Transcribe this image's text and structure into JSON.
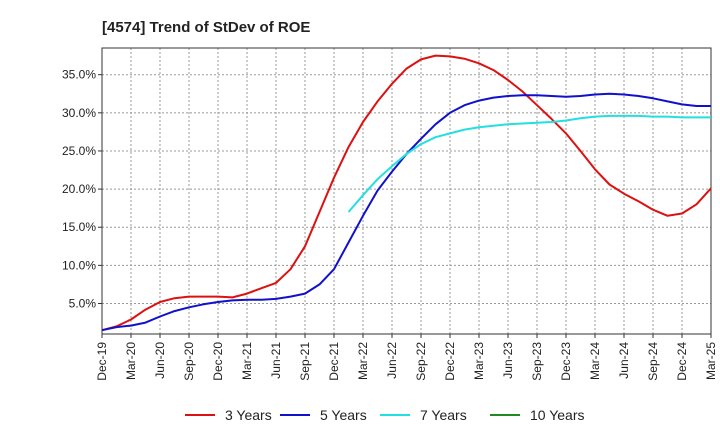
{
  "chart_data": {
    "type": "line",
    "title": "[4574]  Trend of StDev of ROE",
    "xlabel": "",
    "ylabel": "",
    "x_ticks": [
      "Dec-19",
      "Mar-20",
      "Jun-20",
      "Sep-20",
      "Dec-20",
      "Mar-21",
      "Jun-21",
      "Sep-21",
      "Dec-21",
      "Mar-22",
      "Jun-22",
      "Sep-22",
      "Dec-22",
      "Mar-23",
      "Jun-23",
      "Sep-23",
      "Dec-23",
      "Mar-24",
      "Jun-24",
      "Sep-24",
      "Dec-24",
      "Mar-25"
    ],
    "y_ticks": [
      "5.0%",
      "10.0%",
      "15.0%",
      "20.0%",
      "25.0%",
      "30.0%",
      "35.0%"
    ],
    "ylim": [
      1.0,
      38.5
    ],
    "grid": true,
    "legend_position": "bottom",
    "series": [
      {
        "name": "3 Years",
        "color": "#dd1111",
        "points": [
          [
            0,
            1.5
          ],
          [
            1,
            2.0
          ],
          [
            2,
            2.9
          ],
          [
            3,
            4.2
          ],
          [
            4,
            5.2
          ],
          [
            5,
            5.7
          ],
          [
            6,
            5.9
          ],
          [
            7,
            5.9
          ],
          [
            8,
            5.9
          ],
          [
            9,
            5.8
          ],
          [
            10,
            6.3
          ],
          [
            11,
            7.0
          ],
          [
            12,
            7.7
          ],
          [
            13,
            9.5
          ],
          [
            14,
            12.5
          ],
          [
            15,
            17.0
          ],
          [
            16,
            21.5
          ],
          [
            17,
            25.5
          ],
          [
            18,
            28.8
          ],
          [
            19,
            31.5
          ],
          [
            20,
            33.8
          ],
          [
            21,
            35.8
          ],
          [
            22,
            37.0
          ],
          [
            23,
            37.5
          ],
          [
            24,
            37.4
          ],
          [
            25,
            37.1
          ],
          [
            26,
            36.5
          ],
          [
            27,
            35.6
          ],
          [
            28,
            34.3
          ],
          [
            29,
            32.8
          ],
          [
            30,
            31.0
          ],
          [
            31,
            29.2
          ],
          [
            32,
            27.3
          ],
          [
            33,
            25.0
          ],
          [
            34,
            22.6
          ],
          [
            35,
            20.6
          ],
          [
            36,
            19.4
          ],
          [
            37,
            18.4
          ],
          [
            38,
            17.3
          ],
          [
            39,
            16.5
          ],
          [
            40,
            16.8
          ],
          [
            41,
            18.0
          ],
          [
            42,
            20.1
          ]
        ]
      },
      {
        "name": "5 Years",
        "color": "#1111cc",
        "points": [
          [
            0,
            1.5
          ],
          [
            1,
            1.9
          ],
          [
            2,
            2.1
          ],
          [
            3,
            2.5
          ],
          [
            4,
            3.3
          ],
          [
            5,
            4.0
          ],
          [
            6,
            4.5
          ],
          [
            7,
            4.9
          ],
          [
            8,
            5.2
          ],
          [
            9,
            5.4
          ],
          [
            10,
            5.5
          ],
          [
            11,
            5.5
          ],
          [
            12,
            5.6
          ],
          [
            13,
            5.9
          ],
          [
            14,
            6.3
          ],
          [
            15,
            7.5
          ],
          [
            16,
            9.5
          ],
          [
            17,
            13.0
          ],
          [
            18,
            16.5
          ],
          [
            19,
            19.8
          ],
          [
            20,
            22.3
          ],
          [
            21,
            24.6
          ],
          [
            22,
            26.6
          ],
          [
            23,
            28.5
          ],
          [
            24,
            30.0
          ],
          [
            25,
            31.0
          ],
          [
            26,
            31.6
          ],
          [
            27,
            32.0
          ],
          [
            28,
            32.2
          ],
          [
            29,
            32.3
          ],
          [
            30,
            32.3
          ],
          [
            31,
            32.2
          ],
          [
            32,
            32.1
          ],
          [
            33,
            32.2
          ],
          [
            34,
            32.4
          ],
          [
            35,
            32.5
          ],
          [
            36,
            32.4
          ],
          [
            37,
            32.2
          ],
          [
            38,
            31.9
          ],
          [
            39,
            31.5
          ],
          [
            40,
            31.1
          ],
          [
            41,
            30.9
          ],
          [
            42,
            30.9
          ]
        ]
      },
      {
        "name": "7 Years",
        "color": "#22e0e0",
        "points": [
          [
            17,
            17.0
          ],
          [
            18,
            19.2
          ],
          [
            19,
            21.3
          ],
          [
            20,
            23.0
          ],
          [
            21,
            24.6
          ],
          [
            22,
            25.9
          ],
          [
            23,
            26.8
          ],
          [
            24,
            27.3
          ],
          [
            25,
            27.8
          ],
          [
            26,
            28.1
          ],
          [
            27,
            28.3
          ],
          [
            28,
            28.5
          ],
          [
            29,
            28.6
          ],
          [
            30,
            28.7
          ],
          [
            31,
            28.8
          ],
          [
            32,
            29.0
          ],
          [
            33,
            29.3
          ],
          [
            34,
            29.5
          ],
          [
            35,
            29.6
          ],
          [
            36,
            29.6
          ],
          [
            37,
            29.6
          ],
          [
            38,
            29.5
          ],
          [
            39,
            29.5
          ],
          [
            40,
            29.4
          ],
          [
            41,
            29.4
          ],
          [
            42,
            29.4
          ]
        ]
      },
      {
        "name": "10 Years",
        "color": "#228822",
        "points": []
      }
    ]
  }
}
